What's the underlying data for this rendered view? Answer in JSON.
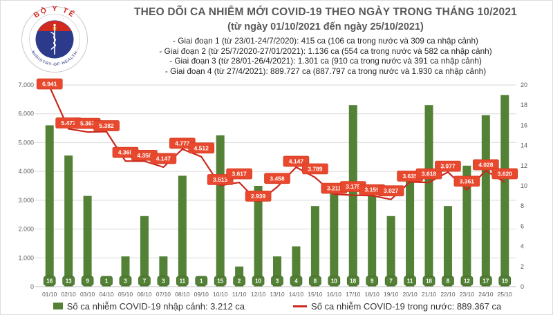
{
  "logo": {
    "top_text": "BỘ Y TẾ",
    "bottom_text": "MINISTRY OF HEALTH"
  },
  "header": {
    "title": "THEO DÕI CA NHIỄM MỚI COVID-19 THEO NGÀY TRONG THÁNG 10/2021",
    "subtitle": "(từ ngày 01/10/2021 đến ngày 25/10/2021)",
    "phases": [
      "- Giai đoạn 1 (từ 23/01-24/7/2020): 415 ca (106 ca trong nước và 309 ca nhập cảnh)",
      "- Giai đoạn 2 (từ 25/7/2020-27/01/2021): 1.136 ca (554 ca trong nước và 582 ca nhập cảnh)",
      "- Giai đoạn 3 (từ 28/01-26/4/2021): 1.301 ca (910 ca trong nước và 391 ca nhập cảnh)",
      "- Giai đoạn 4 (từ 27/4/2021): 889.727 ca (887.797 ca trong nước và 1.930 ca nhập cảnh)"
    ]
  },
  "legend": {
    "bars_label": "Số ca nhiễm COVID-19 nhập cảnh: 3.212 ca",
    "line_label": "Số ca nhiễm COVID-19 trong nước: 889.367 ca"
  },
  "colors": {
    "bar": "#538135",
    "bar_box_border": "#40632a",
    "line": "#c9281c",
    "label_box": "#e8492e",
    "label_box_border": "#d03a22",
    "title": "#595959",
    "axis_text": "#595959",
    "grid": "#d9d9d9",
    "axis_line": "#bfbfbf",
    "logo_navy": "#2c3a8c",
    "logo_red": "#d12b1f",
    "logo_star": "#f2c417"
  },
  "chart_data": {
    "type": "bar+line",
    "categories": [
      "01/10",
      "02/10",
      "03/10",
      "04/10",
      "05/10",
      "06/10",
      "07/10",
      "08/10",
      "09/10",
      "10/10",
      "11/10",
      "12/10",
      "13/10",
      "14/10",
      "15/10",
      "16/10",
      "17/10",
      "18/10",
      "19/10",
      "20/10",
      "21/10",
      "22/10",
      "23/10",
      "24/10",
      "25/10"
    ],
    "series": [
      {
        "name": "Số ca nhiễm COVID-19 nhập cảnh",
        "type": "bar",
        "axis": "right",
        "values": [
          16,
          13,
          9,
          1,
          3,
          7,
          3,
          11,
          1,
          15,
          2,
          10,
          3,
          4,
          8,
          10,
          18,
          9,
          7,
          11,
          18,
          8,
          12,
          17,
          19
        ]
      },
      {
        "name": "Số ca nhiễm COVID-19 trong nước",
        "type": "line",
        "axis": "left",
        "values": [
          6941,
          5477,
          5367,
          5382,
          4360,
          4356,
          4147,
          4773,
          4512,
          3513,
          3617,
          2939,
          3458,
          4147,
          3789,
          3211,
          3175,
          3159,
          3027,
          3635,
          3618,
          3977,
          3361,
          4028,
          3620
        ]
      }
    ],
    "left_axis": {
      "min": 0,
      "max": 7000,
      "step": 1000
    },
    "right_axis": {
      "min": 0,
      "max": 20,
      "step": 2
    },
    "grid": true,
    "legend_position": "bottom",
    "data_labels": "all points labeled; line labels use thousands dot format"
  }
}
